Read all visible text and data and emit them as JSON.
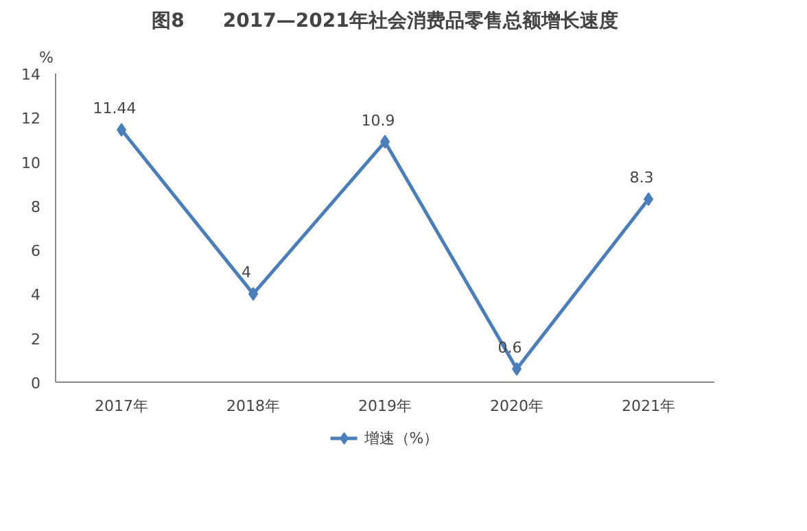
{
  "chart_data": {
    "type": "line",
    "title": "图8　　2017—2021年社会消费品零售总额增长速度",
    "ylabel": "%",
    "categories": [
      "2017年",
      "2018年",
      "2019年",
      "2020年",
      "2021年"
    ],
    "series": [
      {
        "name": "增速（%）",
        "color": "#4a7ebb",
        "values": [
          11.44,
          4,
          10.9,
          0.6,
          8.3
        ]
      }
    ],
    "ylim": [
      0,
      14
    ],
    "yticks": [
      0,
      2,
      4,
      6,
      8,
      10,
      12,
      14
    ],
    "grid": false,
    "legend": "bottom",
    "marker": "diamond",
    "line_style": "solid",
    "data_labels": true
  }
}
